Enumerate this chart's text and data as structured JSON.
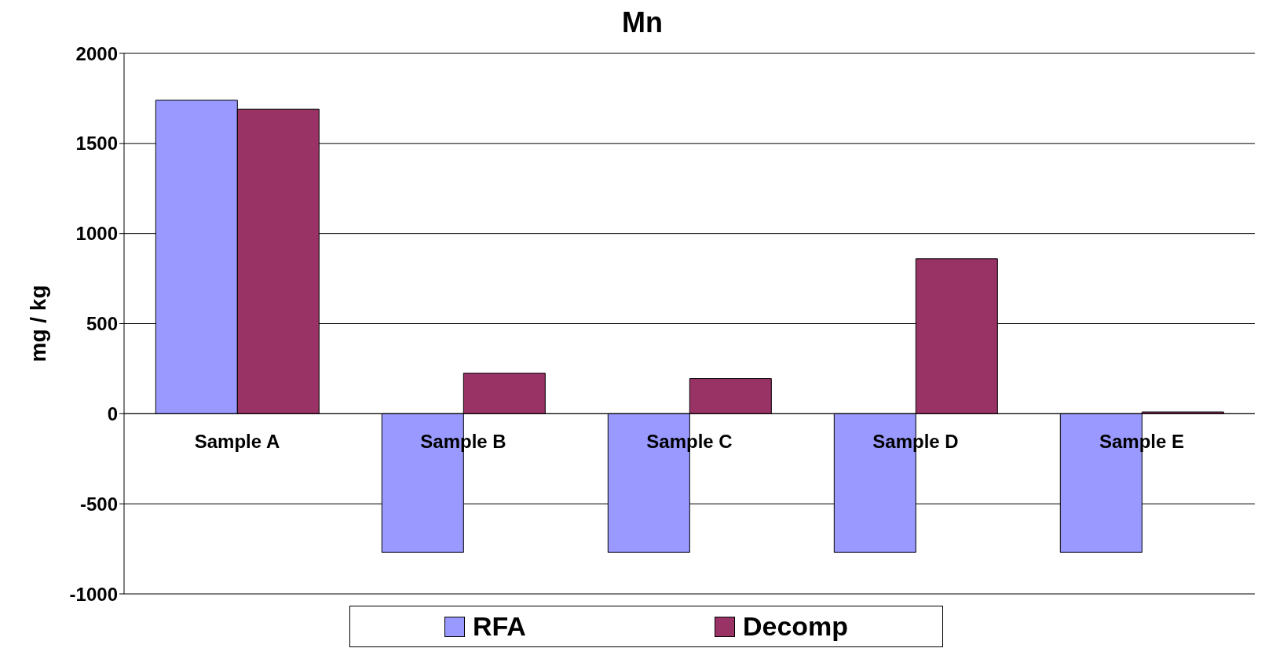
{
  "chart_data": {
    "type": "bar",
    "title": "Mn",
    "ylabel": "mg / kg",
    "categories": [
      "Sample A",
      "Sample B",
      "Sample C",
      "Sample D",
      "Sample E"
    ],
    "series": [
      {
        "name": "RFA",
        "color": "#9999ff",
        "values": [
          1740,
          -770,
          -770,
          -770,
          -770
        ]
      },
      {
        "name": "Decomp",
        "color": "#993366",
        "values": [
          1690,
          225,
          195,
          860,
          10
        ]
      }
    ],
    "ylim": [
      -1000,
      2000
    ],
    "yticks": [
      -1000,
      -500,
      0,
      500,
      1000,
      1500,
      2000
    ],
    "grid": "y",
    "legend": "bottom"
  }
}
